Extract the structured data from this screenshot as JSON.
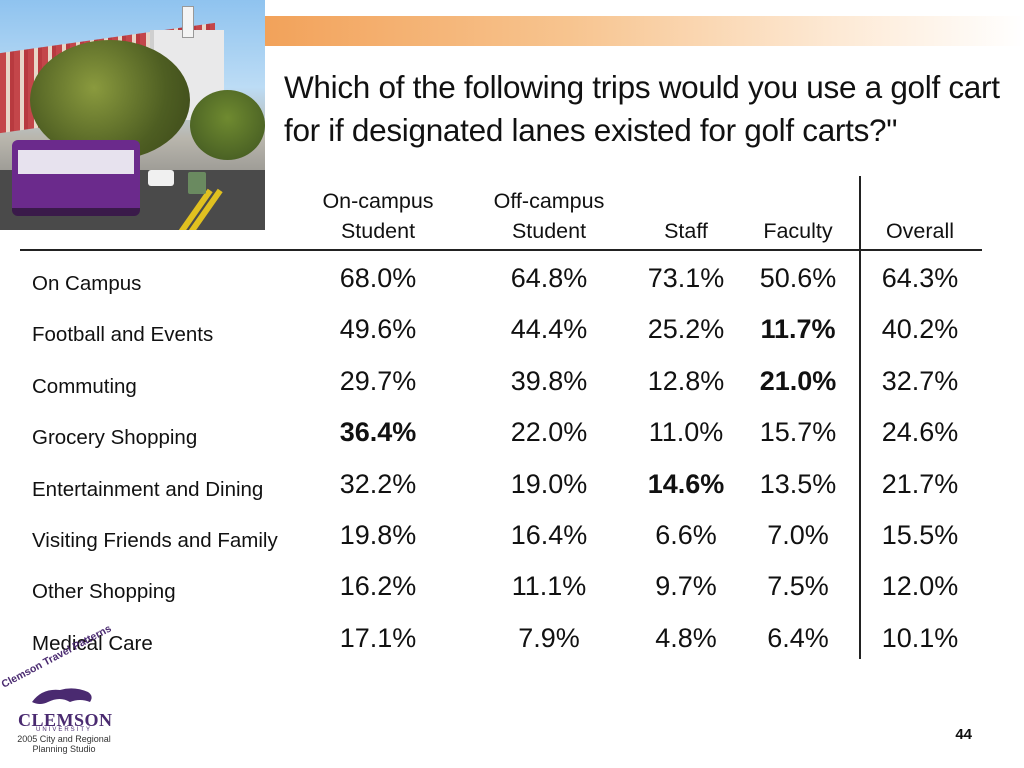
{
  "title": "Which of the following trips would you use a golf cart for if designated lanes existed for golf carts?\"",
  "columns": [
    {
      "line1": "On-campus",
      "line2": "Student"
    },
    {
      "line1": "Off-campus",
      "line2": "Student"
    },
    {
      "line1": "",
      "line2": "Staff"
    },
    {
      "line1": "",
      "line2": "Faculty"
    },
    {
      "line1": "",
      "line2": "Overall"
    }
  ],
  "rows": [
    {
      "label": "On Campus",
      "values": [
        "68.0%",
        "64.8%",
        "73.1%",
        "50.6%",
        "64.3%"
      ],
      "bold": []
    },
    {
      "label": "Football and Events",
      "values": [
        "49.6%",
        "44.4%",
        "25.2%",
        "11.7%",
        "40.2%"
      ],
      "bold": [
        3
      ]
    },
    {
      "label": "Commuting",
      "values": [
        "29.7%",
        "39.8%",
        "12.8%",
        "21.0%",
        "32.7%"
      ],
      "bold": [
        3
      ]
    },
    {
      "label": "Grocery Shopping",
      "values": [
        "36.4%",
        "22.0%",
        "11.0%",
        "15.7%",
        "24.6%"
      ],
      "bold": [
        0
      ]
    },
    {
      "label": "Entertainment and Dining",
      "values": [
        "32.2%",
        "19.0%",
        "14.6%",
        "13.5%",
        "21.7%"
      ],
      "bold": [
        2
      ]
    },
    {
      "label": "Visiting Friends and Family",
      "values": [
        "19.8%",
        "16.4%",
        "6.6%",
        "7.0%",
        "15.5%"
      ],
      "bold": []
    },
    {
      "label": "Other Shopping",
      "values": [
        "16.2%",
        "11.1%",
        "9.7%",
        "7.5%",
        "12.0%"
      ],
      "bold": []
    },
    {
      "label": "Medical Care",
      "values": [
        "17.1%",
        "7.9%",
        "4.8%",
        "6.4%",
        "10.1%"
      ],
      "bold": []
    }
  ],
  "logo": {
    "arc_text": "Clemson Travel Patterns",
    "name": "CLEMSON",
    "university": "UNIVERSITY",
    "line1": "2005 City and Regional",
    "line2": "Planning Studio"
  },
  "page_number": "44",
  "colors": {
    "accent_orange": "#f2a25a",
    "clemson_purple": "#4a2a70"
  }
}
